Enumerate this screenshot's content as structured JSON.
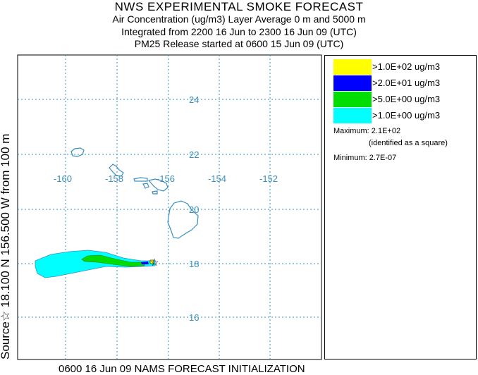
{
  "header": {
    "title": "NWS EXPERIMENTAL SMOKE FORECAST",
    "line2": "Air Concentration (ug/m3) Layer Average    0 m and  5000 m",
    "line3": "Integrated from 2200 16 Jun to 2300 16 Jun 09 (UTC)",
    "line4": "PM25 Release started at 0600 15 Jun 09 (UTC)"
  },
  "source_label": "Source☆ 18.100 N 156.500  W      from  100 m",
  "footer": "0600 16 Jun 09 NAMS FORECAST INITIALIZATION",
  "map": {
    "lon_labels": [
      "-160",
      "-158",
      "-156",
      "-154",
      "-152"
    ],
    "lat_labels": [
      "24",
      "22",
      "20",
      "18",
      "16"
    ],
    "grid_color": "#3a8fc0",
    "coast_color": "#3a8fc0"
  },
  "legend": {
    "items": [
      {
        "label": ">1.0E+02 ug/m3",
        "color": "#ffff00"
      },
      {
        "label": ">2.0E+01 ug/m3",
        "color": "#0000ff"
      },
      {
        "label": ">5.0E+00 ug/m3",
        "color": "#00dd00"
      },
      {
        "label": ">1.0E+00 ug/m3",
        "color": "#00ffff"
      }
    ],
    "maximum": "Maximum: 2.1E+02",
    "maximum_note": "(identified as a square)",
    "minimum": "Minimum: 2.7E-07"
  }
}
